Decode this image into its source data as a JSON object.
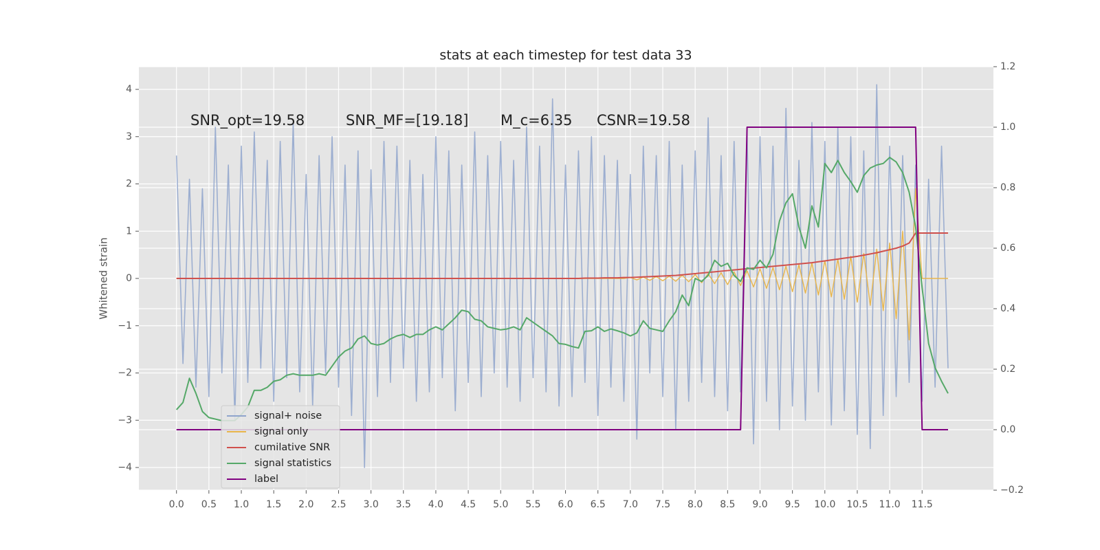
{
  "chart_data": {
    "type": "line",
    "title": "stats at each timestep for test data 33",
    "ylabel": "Whitened strain",
    "annotations": [
      "SNR_opt=19.58",
      "SNR_MF=[19.18]",
      "M_c=6.35",
      "CSNR=19.58"
    ],
    "x": [
      0,
      0.1,
      0.2,
      0.3,
      0.4,
      0.5,
      0.6,
      0.7,
      0.8,
      0.9,
      1,
      1.1,
      1.2,
      1.3,
      1.4,
      1.5,
      1.6,
      1.7,
      1.8,
      1.9,
      2,
      2.1,
      2.2,
      2.3,
      2.4,
      2.5,
      2.6,
      2.7,
      2.8,
      2.9,
      3,
      3.1,
      3.2,
      3.3,
      3.4,
      3.5,
      3.6,
      3.7,
      3.8,
      3.9,
      4,
      4.1,
      4.2,
      4.3,
      4.4,
      4.5,
      4.6,
      4.7,
      4.8,
      4.9,
      5,
      5.1,
      5.2,
      5.3,
      5.4,
      5.5,
      5.6,
      5.7,
      5.8,
      5.9,
      6,
      6.1,
      6.2,
      6.3,
      6.4,
      6.5,
      6.6,
      6.7,
      6.8,
      6.9,
      7,
      7.1,
      7.2,
      7.3,
      7.4,
      7.5,
      7.6,
      7.7,
      7.8,
      7.9,
      8,
      8.1,
      8.2,
      8.3,
      8.4,
      8.5,
      8.6,
      8.7,
      8.8,
      8.9,
      9,
      9.1,
      9.2,
      9.3,
      9.4,
      9.5,
      9.6,
      9.7,
      9.8,
      9.9,
      10,
      10.1,
      10.2,
      10.3,
      10.4,
      10.5,
      10.6,
      10.7,
      10.8,
      10.9,
      11,
      11.1,
      11.2,
      11.3,
      11.4,
      11.5,
      11.6,
      11.7,
      11.8,
      11.9
    ],
    "series": [
      {
        "name": "signal+ noise",
        "color": "#8fa4cc",
        "values": [
          2.6,
          -1.8,
          2.1,
          -2.3,
          1.9,
          -2.5,
          3.2,
          -2.0,
          2.4,
          -3.0,
          2.8,
          -2.2,
          3.1,
          -1.9,
          2.5,
          -2.6,
          2.9,
          -2.1,
          3.3,
          -2.4,
          2.2,
          -2.7,
          2.6,
          -2.0,
          3.0,
          -2.3,
          2.4,
          -2.9,
          2.7,
          -4.0,
          2.3,
          -2.5,
          2.9,
          -2.2,
          2.8,
          -1.9,
          2.5,
          -2.6,
          2.2,
          -2.4,
          3.0,
          -2.1,
          2.7,
          -2.8,
          2.4,
          -2.2,
          3.1,
          -2.5,
          2.6,
          -2.0,
          2.9,
          -2.3,
          2.5,
          -2.6,
          3.2,
          -2.1,
          2.8,
          -2.4,
          3.8,
          -2.7,
          2.4,
          -2.5,
          2.7,
          -2.2,
          3.0,
          -2.9,
          2.6,
          -2.3,
          2.5,
          -2.6,
          2.2,
          -3.4,
          2.8,
          -2.0,
          2.6,
          -2.5,
          2.9,
          -3.2,
          2.4,
          -2.6,
          2.7,
          -2.2,
          3.4,
          -2.5,
          2.6,
          -2.8,
          2.9,
          -2.4,
          3.1,
          -3.5,
          3.0,
          -2.6,
          2.8,
          -3.2,
          3.6,
          -2.7,
          2.5,
          -3.0,
          3.3,
          -2.4,
          2.9,
          -3.1,
          3.2,
          -2.8,
          3.0,
          -3.3,
          2.7,
          -3.6,
          4.1,
          -2.9,
          2.8,
          -2.5,
          2.6,
          -2.2,
          2.4,
          -2.6,
          2.1,
          -2.3,
          2.8,
          -1.9
        ]
      },
      {
        "name": "signal only",
        "color": "#e8b54a",
        "values": [
          0,
          0,
          0,
          0,
          0,
          0,
          0,
          0,
          0,
          0,
          0,
          0,
          0,
          0,
          0,
          0,
          0,
          0,
          0,
          0,
          0,
          0,
          0,
          0,
          0,
          0,
          0,
          0,
          0,
          0,
          0,
          0,
          0,
          0,
          0,
          0,
          0,
          0,
          0,
          0,
          0,
          0,
          0,
          0,
          0,
          0,
          0,
          0,
          0,
          0,
          0,
          0,
          0,
          0,
          0,
          0,
          0,
          0,
          0,
          0,
          0,
          0,
          0,
          0,
          0,
          0,
          0,
          0,
          0,
          0,
          0.02,
          -0.03,
          0.03,
          -0.04,
          0.04,
          -0.05,
          0.05,
          -0.06,
          0.07,
          -0.07,
          0.08,
          -0.09,
          0.1,
          -0.11,
          0.12,
          -0.13,
          0.14,
          -0.15,
          0.16,
          -0.18,
          0.2,
          -0.21,
          0.23,
          -0.24,
          0.26,
          -0.28,
          0.29,
          -0.31,
          0.33,
          -0.35,
          0.37,
          -0.39,
          0.41,
          -0.44,
          0.47,
          -0.5,
          0.53,
          -0.57,
          0.62,
          -0.68,
          0.75,
          -0.85,
          1.0,
          -1.3,
          1.9,
          0,
          0,
          0,
          0,
          0
        ]
      },
      {
        "name": "cumilative SNR",
        "color": "#d0504c",
        "axis": "y2",
        "values": [
          0.5,
          0.5,
          0.5,
          0.5,
          0.5,
          0.5,
          0.5,
          0.5,
          0.5,
          0.5,
          0.5,
          0.5,
          0.5,
          0.5,
          0.5,
          0.5,
          0.5,
          0.5,
          0.5,
          0.5,
          0.5,
          0.5,
          0.5,
          0.5,
          0.5,
          0.5,
          0.5,
          0.5,
          0.5,
          0.5,
          0.5,
          0.5,
          0.5,
          0.5,
          0.5,
          0.5,
          0.5,
          0.5,
          0.5,
          0.5,
          0.5,
          0.5,
          0.5,
          0.5,
          0.5,
          0.5,
          0.5,
          0.5,
          0.5,
          0.5,
          0.5,
          0.5,
          0.5,
          0.5,
          0.5,
          0.5,
          0.5,
          0.5,
          0.5,
          0.5,
          0.5,
          0.5,
          0.5,
          0.501,
          0.501,
          0.501,
          0.502,
          0.502,
          0.502,
          0.503,
          0.503,
          0.504,
          0.505,
          0.506,
          0.507,
          0.508,
          0.509,
          0.51,
          0.512,
          0.514,
          0.516,
          0.518,
          0.52,
          0.522,
          0.524,
          0.526,
          0.528,
          0.53,
          0.532,
          0.534,
          0.536,
          0.538,
          0.54,
          0.542,
          0.544,
          0.546,
          0.548,
          0.55,
          0.552,
          0.555,
          0.558,
          0.561,
          0.564,
          0.567,
          0.57,
          0.573,
          0.577,
          0.581,
          0.585,
          0.59,
          0.595,
          0.6,
          0.607,
          0.617,
          0.65,
          0.65,
          0.65,
          0.65,
          0.65,
          0.65
        ]
      },
      {
        "name": "signal statistics",
        "color": "#55a868",
        "axis": "y2",
        "values": [
          0.066,
          0.09,
          0.17,
          0.12,
          0.06,
          0.04,
          0.035,
          0.03,
          0.03,
          0.03,
          0.05,
          0.075,
          0.13,
          0.13,
          0.14,
          0.16,
          0.165,
          0.18,
          0.185,
          0.18,
          0.18,
          0.18,
          0.185,
          0.18,
          0.21,
          0.24,
          0.26,
          0.27,
          0.3,
          0.31,
          0.285,
          0.28,
          0.285,
          0.3,
          0.31,
          0.315,
          0.305,
          0.315,
          0.315,
          0.33,
          0.34,
          0.33,
          0.35,
          0.37,
          0.395,
          0.39,
          0.365,
          0.36,
          0.34,
          0.335,
          0.33,
          0.333,
          0.34,
          0.33,
          0.37,
          0.355,
          0.34,
          0.325,
          0.31,
          0.285,
          0.282,
          0.275,
          0.27,
          0.325,
          0.327,
          0.34,
          0.325,
          0.333,
          0.327,
          0.32,
          0.31,
          0.32,
          0.36,
          0.335,
          0.33,
          0.325,
          0.36,
          0.39,
          0.445,
          0.41,
          0.5,
          0.49,
          0.51,
          0.56,
          0.54,
          0.55,
          0.51,
          0.49,
          0.535,
          0.53,
          0.56,
          0.535,
          0.58,
          0.69,
          0.75,
          0.78,
          0.67,
          0.6,
          0.74,
          0.67,
          0.88,
          0.85,
          0.89,
          0.85,
          0.82,
          0.785,
          0.84,
          0.865,
          0.875,
          0.88,
          0.9,
          0.885,
          0.85,
          0.785,
          0.67,
          0.47,
          0.285,
          0.205,
          0.16,
          0.12
        ]
      },
      {
        "name": "label",
        "color": "#800080",
        "axis": "y2",
        "values": [
          0,
          0,
          0,
          0,
          0,
          0,
          0,
          0,
          0,
          0,
          0,
          0,
          0,
          0,
          0,
          0,
          0,
          0,
          0,
          0,
          0,
          0,
          0,
          0,
          0,
          0,
          0,
          0,
          0,
          0,
          0,
          0,
          0,
          0,
          0,
          0,
          0,
          0,
          0,
          0,
          0,
          0,
          0,
          0,
          0,
          0,
          0,
          0,
          0,
          0,
          0,
          0,
          0,
          0,
          0,
          0,
          0,
          0,
          0,
          0,
          0,
          0,
          0,
          0,
          0,
          0,
          0,
          0,
          0,
          0,
          0,
          0,
          0,
          0,
          0,
          0,
          0,
          0,
          0,
          0,
          0,
          0,
          0,
          0,
          0,
          0,
          0,
          0,
          1,
          1,
          1,
          1,
          1,
          1,
          1,
          1,
          1,
          1,
          1,
          1,
          1,
          1,
          1,
          1,
          1,
          1,
          1,
          1,
          1,
          1,
          1,
          1,
          1,
          1,
          1,
          0,
          0,
          0,
          0,
          0
        ]
      }
    ],
    "xlim": [
      -0.58,
      12.6
    ],
    "xticks": [
      {
        "value": 0,
        "label": "0.0"
      },
      {
        "value": 0.5,
        "label": "0.5"
      },
      {
        "value": 1,
        "label": "1.0"
      },
      {
        "value": 1.5,
        "label": "1.5"
      },
      {
        "value": 2,
        "label": "2.0"
      },
      {
        "value": 2.5,
        "label": "2.5"
      },
      {
        "value": 3,
        "label": "3.0"
      },
      {
        "value": 3.5,
        "label": "3.5"
      },
      {
        "value": 4,
        "label": "4.0"
      },
      {
        "value": 4.5,
        "label": "4.5"
      },
      {
        "value": 5,
        "label": "5.0"
      },
      {
        "value": 5.5,
        "label": "5.5"
      },
      {
        "value": 6,
        "label": "6.0"
      },
      {
        "value": 6.5,
        "label": "6.5"
      },
      {
        "value": 7,
        "label": "7.0"
      },
      {
        "value": 7.5,
        "label": "7.5"
      },
      {
        "value": 8,
        "label": "8.0"
      },
      {
        "value": 8.5,
        "label": "8.5"
      },
      {
        "value": 9,
        "label": "9.0"
      },
      {
        "value": 9.5,
        "label": "9.5"
      },
      {
        "value": 10,
        "label": "10.0"
      },
      {
        "value": 10.5,
        "label": "10.5"
      },
      {
        "value": 11,
        "label": "11.0"
      },
      {
        "value": 11.5,
        "label": "11.5"
      }
    ],
    "ylim": [
      -4.48,
      4.48
    ],
    "yticks": [
      {
        "value": -4,
        "label": "−4"
      },
      {
        "value": -3,
        "label": "−3"
      },
      {
        "value": -2,
        "label": "−2"
      },
      {
        "value": -1,
        "label": "−1"
      },
      0,
      1,
      2,
      3,
      4
    ],
    "y2lim": [
      -0.2,
      1.2
    ],
    "y2ticks": [
      {
        "value": -0.2,
        "label": "−0.2"
      },
      {
        "value": 0,
        "label": "0.0"
      },
      0.2,
      0.4,
      0.6,
      0.8,
      {
        "value": 1,
        "label": "1.0"
      },
      1.2
    ],
    "grid": true,
    "legend": "lower left"
  }
}
